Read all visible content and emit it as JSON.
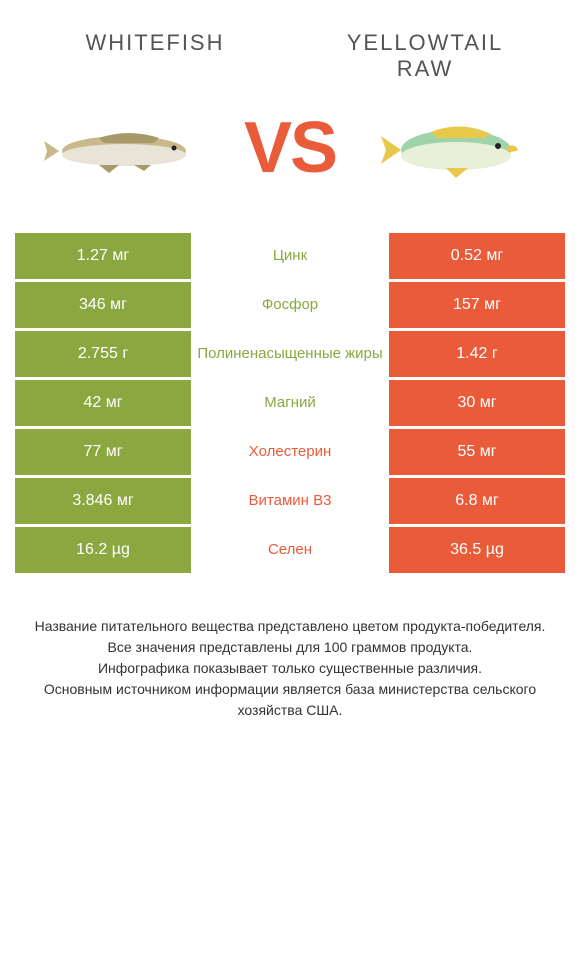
{
  "colors": {
    "green": "#8ba740",
    "orange": "#ea5b3a",
    "text": "#555555"
  },
  "header": {
    "left": "WHITEFISH",
    "right_line1": "YELLOWTAIL",
    "right_line2": "RAW",
    "vs": "VS"
  },
  "rows": [
    {
      "left": "1.27 мг",
      "mid": "Цинк",
      "right": "0.52 мг",
      "winner": "left"
    },
    {
      "left": "346 мг",
      "mid": "Фосфор",
      "right": "157 мг",
      "winner": "left"
    },
    {
      "left": "2.755 г",
      "mid": "Полиненасыщенные жиры",
      "right": "1.42 г",
      "winner": "left"
    },
    {
      "left": "42 мг",
      "mid": "Магний",
      "right": "30 мг",
      "winner": "left"
    },
    {
      "left": "77 мг",
      "mid": "Холестерин",
      "right": "55 мг",
      "winner": "right"
    },
    {
      "left": "3.846 мг",
      "mid": "Витамин B3",
      "right": "6.8 мг",
      "winner": "right"
    },
    {
      "left": "16.2 µg",
      "mid": "Селен",
      "right": "36.5 µg",
      "winner": "right"
    }
  ],
  "footer": {
    "line1": "Название питательного вещества представлено цветом продукта-победителя.",
    "line2": "Все значения представлены для 100 граммов продукта.",
    "line3": "Инфографика показывает только существенные различия.",
    "line4": "Основным источником информации является база министерства сельского хозяйства США."
  }
}
